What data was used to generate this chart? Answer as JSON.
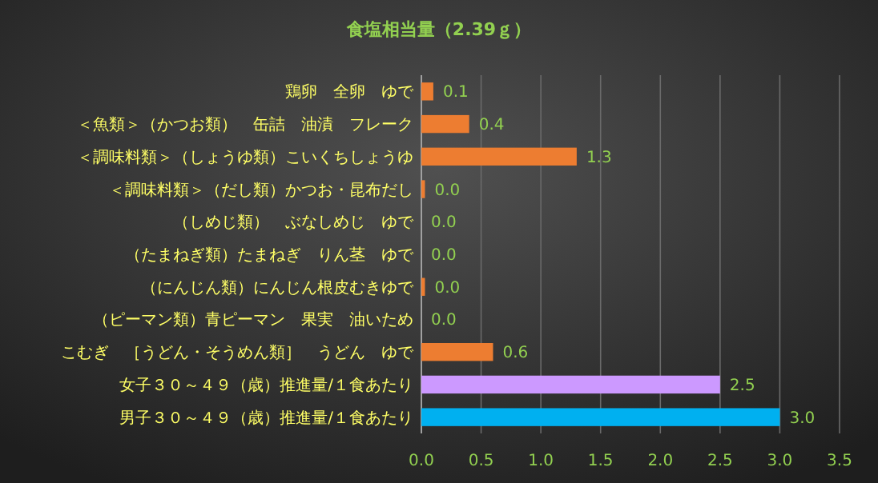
{
  "chart_data": {
    "type": "bar",
    "orientation": "horizontal",
    "title": "食塩相当量（2.39ｇ）",
    "categories": [
      "鶏卵　全卵　ゆで",
      "＜魚類＞（かつお類）　缶詰　油漬　フレーク",
      "＜調味料類＞（しょうゆ類）こいくちしょうゆ",
      "＜調味料類＞（だし類）かつお・昆布だし",
      "（しめじ類）　ぶなしめじ　ゆで",
      "（たまねぎ類）たまねぎ　りん茎　ゆで",
      "（にんじん類）にんじん根皮むきゆで",
      "（ピーマン類）青ピーマン　果実　油いため",
      "こむぎ　［うどん・そうめん類］　うどん　ゆで",
      "女子３０～４９（歳）推進量/１食あたり",
      "男子３０～４９（歳）推進量/１食あたり"
    ],
    "values": [
      0.1,
      0.4,
      1.3,
      0.03,
      0,
      0,
      0.03,
      0,
      0.6,
      2.5,
      3.0
    ],
    "value_labels": [
      "0.1",
      "0.4",
      "1.3",
      "0.0",
      "0.0",
      "0.0",
      "0.0",
      "0.0",
      "0.6",
      "2.5",
      "3.0"
    ],
    "colors": [
      "#ed7d31",
      "#ed7d31",
      "#ed7d31",
      "#ed7d31",
      "#ed7d31",
      "#ed7d31",
      "#ed7d31",
      "#ed7d31",
      "#ed7d31",
      "#cc99ff",
      "#00b0f0"
    ],
    "xlim": [
      0,
      3.5
    ],
    "xticks": [
      {
        "value": 0,
        "label": "0.0"
      },
      {
        "value": 0.5,
        "label": "0.5"
      },
      {
        "value": 1,
        "label": "1.0"
      },
      {
        "value": 1.5,
        "label": "1.5"
      },
      {
        "value": 2,
        "label": "2.0"
      },
      {
        "value": 2.5,
        "label": "2.5"
      },
      {
        "value": 3,
        "label": "3.0"
      },
      {
        "value": 3.5,
        "label": "3.5"
      }
    ],
    "grid": "x"
  }
}
